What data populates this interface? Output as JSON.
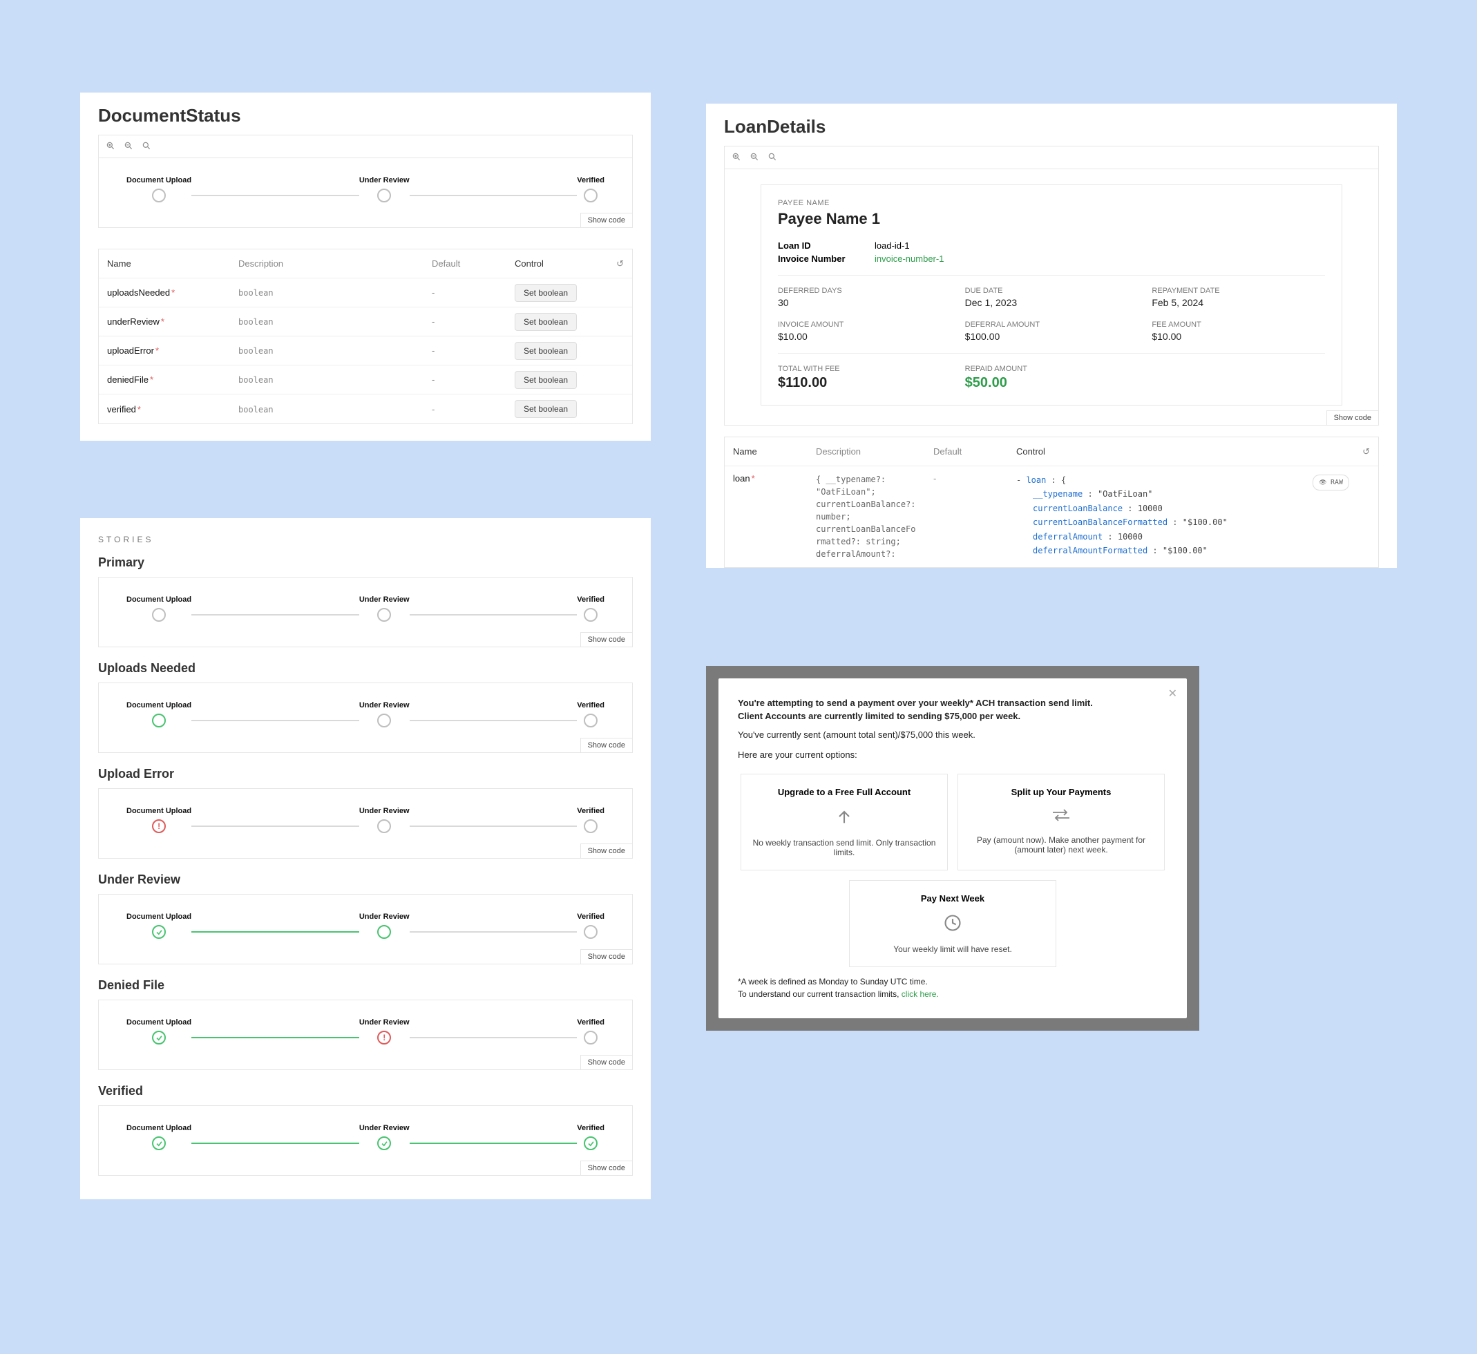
{
  "colors": {
    "page_bg": "#c9ddf8",
    "panel_bg": "#ffffff",
    "border": "#e6e6e6",
    "text": "#222222",
    "muted": "#7a7a7a",
    "green": "#47c46f",
    "green_text": "#2e9d4b",
    "red": "#e15a5a",
    "link_blue": "#1f6fd1"
  },
  "document_status": {
    "title": "DocumentStatus",
    "show_code_label": "Show code",
    "steps": [
      "Document Upload",
      "Under Review",
      "Verified"
    ],
    "table_headers": {
      "name": "Name",
      "description": "Description",
      "default": "Default",
      "control": "Control"
    },
    "set_label": "Set boolean",
    "rows": [
      {
        "name": "uploadsNeeded",
        "type": "boolean",
        "default": "-"
      },
      {
        "name": "underReview",
        "type": "boolean",
        "default": "-"
      },
      {
        "name": "uploadError",
        "type": "boolean",
        "default": "-"
      },
      {
        "name": "deniedFile",
        "type": "boolean",
        "default": "-"
      },
      {
        "name": "verified",
        "type": "boolean",
        "default": "-"
      }
    ]
  },
  "stories": {
    "header": "STORIES",
    "items": [
      {
        "title": "Primary",
        "states": [
          "neutral",
          "neutral",
          "neutral"
        ],
        "conn": [
          "grey",
          "grey"
        ]
      },
      {
        "title": "Uploads Needed",
        "states": [
          "pending-green",
          "neutral",
          "neutral"
        ],
        "conn": [
          "grey",
          "grey"
        ]
      },
      {
        "title": "Upload Error",
        "states": [
          "red",
          "neutral",
          "neutral"
        ],
        "conn": [
          "grey",
          "grey"
        ]
      },
      {
        "title": "Under Review",
        "states": [
          "green",
          "pending-green",
          "neutral"
        ],
        "conn": [
          "green",
          "grey"
        ]
      },
      {
        "title": "Denied File",
        "states": [
          "green",
          "red",
          "neutral"
        ],
        "conn": [
          "green",
          "grey"
        ]
      },
      {
        "title": "Verified",
        "states": [
          "green",
          "green",
          "green"
        ],
        "conn": [
          "green",
          "green"
        ]
      }
    ]
  },
  "loan": {
    "title": "LoanDetails",
    "payee_label": "PAYEE NAME",
    "payee_name": "Payee Name 1",
    "loan_id_label": "Loan ID",
    "loan_id": "load-id-1",
    "invoice_number_label": "Invoice Number",
    "invoice_number": "invoice-number-1",
    "grid": [
      {
        "k": "DEFERRED DAYS",
        "v": "30"
      },
      {
        "k": "DUE DATE",
        "v": "Dec 1, 2023"
      },
      {
        "k": "REPAYMENT DATE",
        "v": "Feb 5, 2024"
      },
      {
        "k": "INVOICE AMOUNT",
        "v": "$10.00"
      },
      {
        "k": "DEFERRAL AMOUNT",
        "v": "$100.00"
      },
      {
        "k": "FEE AMOUNT",
        "v": "$10.00"
      }
    ],
    "total_label": "TOTAL WITH FEE",
    "total": "$110.00",
    "repaid_label": "REPAID AMOUNT",
    "repaid": "$50.00",
    "show_code_label": "Show code",
    "table_headers": {
      "name": "Name",
      "description": "Description",
      "default": "Default",
      "control": "Control"
    },
    "raw_label": "RAW",
    "desc_lines": [
      "{ __typename?:",
      "\"OatFiLoan\";",
      "currentLoanBalance?:",
      "number;",
      "currentLoanBalanceFo",
      "rmatted?: string;",
      "deferralAmount?:"
    ],
    "ctl_prefix": "loan : {",
    "ctl_lines": [
      {
        "key": "__typename",
        "val": "\"OatFiLoan\""
      },
      {
        "key": "currentLoanBalance",
        "val": "10000"
      },
      {
        "key": "currentLoanBalanceFormatted",
        "val": "\"$100.00\""
      },
      {
        "key": "deferralAmount",
        "val": "10000"
      },
      {
        "key": "deferralAmountFormatted",
        "val": "\"$100.00\""
      }
    ],
    "prop_name": "loan",
    "default": "-"
  },
  "modal": {
    "headline1": "You're attempting to send a payment over your weekly* ACH transaction send limit.",
    "headline2": "Client Accounts are currently limited to sending $75,000 per week.",
    "sent_line": "You've currently sent (amount total sent)/$75,000 this week.",
    "options_intro": "Here are your current options:",
    "options": [
      {
        "title": "Upgrade to a Free Full Account",
        "desc": "No weekly transaction send limit. Only transaction limits.",
        "icon": "upgrade"
      },
      {
        "title": "Split up Your Payments",
        "desc": "Pay (amount now). Make another payment for (amount later) next week.",
        "icon": "split"
      },
      {
        "title": "Pay Next Week",
        "desc": "Your weekly limit will have reset.",
        "icon": "clock"
      }
    ],
    "footnote1": "*A week is defined as Monday to Sunday UTC time.",
    "footnote2_pre": "To understand our current transaction limits, ",
    "footnote2_link": "click here."
  }
}
